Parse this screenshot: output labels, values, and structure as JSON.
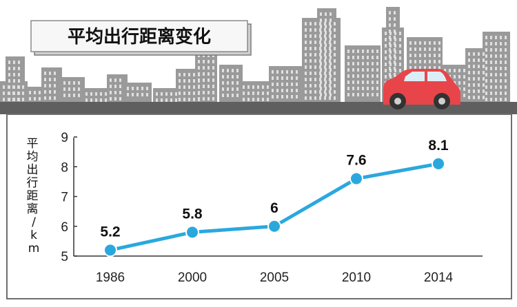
{
  "title": "平均出行距离变化",
  "colors": {
    "line": "#2aa8de",
    "point": "#2aa8de",
    "building": "#9a9a9a",
    "building_window": "#e0e0e0",
    "road": "#5f5f5f",
    "panel_border": "#7b7b7b",
    "car_body": "#e8454a"
  },
  "icons": {
    "car": "car-icon"
  },
  "chart_data": {
    "type": "line",
    "title": "",
    "xlabel": "",
    "ylabel": "平均出行距离/km",
    "categories": [
      "1986",
      "2000",
      "2005",
      "2010",
      "2014"
    ],
    "series": [
      {
        "values": [
          5.2,
          5.8,
          6,
          7.6,
          8.1
        ],
        "labels": [
          "5.2",
          "5.8",
          "6",
          "7.6",
          "8.1"
        ]
      }
    ],
    "ylim": [
      5,
      9
    ],
    "yticks": [
      "5",
      "6",
      "7",
      "8",
      "9"
    ],
    "grid": false,
    "legend": "none"
  }
}
